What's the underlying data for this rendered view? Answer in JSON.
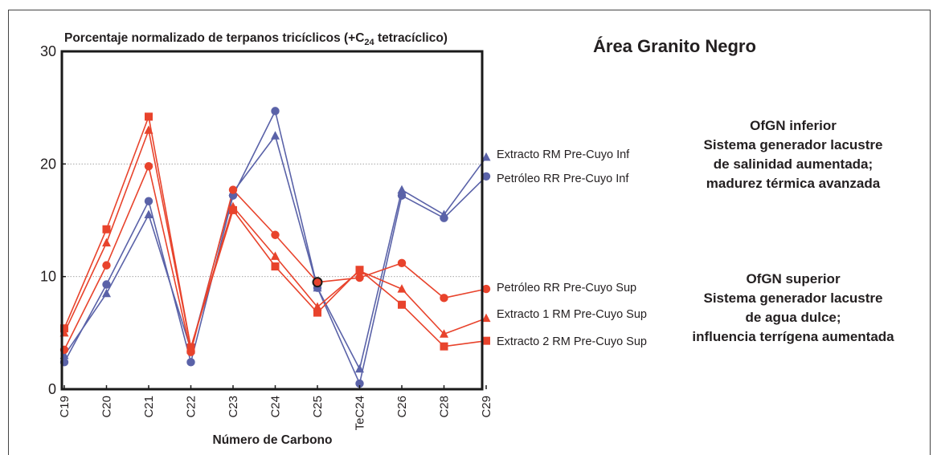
{
  "chart_data": {
    "type": "line",
    "title_main": "Porcentaje normalizado de terpanos tricíclicos (+C",
    "title_sub": "24",
    "title_tail": " tetracíclico)",
    "xlabel": "Número de Carbono",
    "ylabel": "",
    "ylim": [
      0,
      30
    ],
    "yticks": [
      "0",
      "10",
      "20",
      "30"
    ],
    "gridlines_at": [
      10,
      20
    ],
    "categories": [
      "C19",
      "C20",
      "C21",
      "C22",
      "C23",
      "C24",
      "C25",
      "TeC24",
      "C26",
      "C28",
      "C29"
    ],
    "series": [
      {
        "name": "Extracto RM Pre-Cuyo Inf",
        "color": "#5a62a8",
        "marker": "triangle",
        "values": [
          3.0,
          8.5,
          15.5,
          3.5,
          17.5,
          22.5,
          9.0,
          1.8,
          17.7,
          15.5,
          20.6
        ]
      },
      {
        "name": "Petróleo RR Pre-Cuyo Inf",
        "color": "#5a62a8",
        "marker": "circle",
        "values": [
          2.4,
          9.3,
          16.7,
          2.4,
          17.2,
          24.7,
          9.0,
          0.5,
          17.2,
          15.2,
          18.9
        ]
      },
      {
        "name": "Petróleo RR Pre-Cuyo Sup",
        "color": "#e8432c",
        "marker": "circle",
        "values": [
          3.5,
          11.0,
          19.8,
          3.3,
          17.7,
          13.7,
          9.5,
          9.9,
          11.2,
          8.1,
          8.9
        ]
      },
      {
        "name": "Extracto 1 RM Pre-Cuyo Sup",
        "color": "#e8432c",
        "marker": "triangle",
        "values": [
          5.0,
          13.0,
          23.0,
          3.7,
          16.2,
          11.8,
          7.3,
          10.5,
          8.9,
          4.9,
          6.3
        ]
      },
      {
        "name": "Extracto 2 RM Pre-Cuyo Sup",
        "color": "#e8432c",
        "marker": "square",
        "values": [
          5.4,
          14.2,
          24.2,
          3.7,
          15.9,
          10.9,
          6.8,
          10.6,
          7.5,
          3.8,
          4.3
        ]
      }
    ],
    "highlight_point": {
      "category": "C25",
      "value": 9.5
    }
  },
  "area_title": "Área Granito Negro",
  "annotation_inferior": [
    "OfGN inferior",
    "Sistema generador lacustre",
    "de salinidad aumentada;",
    "madurez térmica avanzada"
  ],
  "annotation_superior": [
    "OfGN superior",
    "Sistema generador lacustre",
    "de agua dulce;",
    "influencia terrígena aumentada"
  ]
}
